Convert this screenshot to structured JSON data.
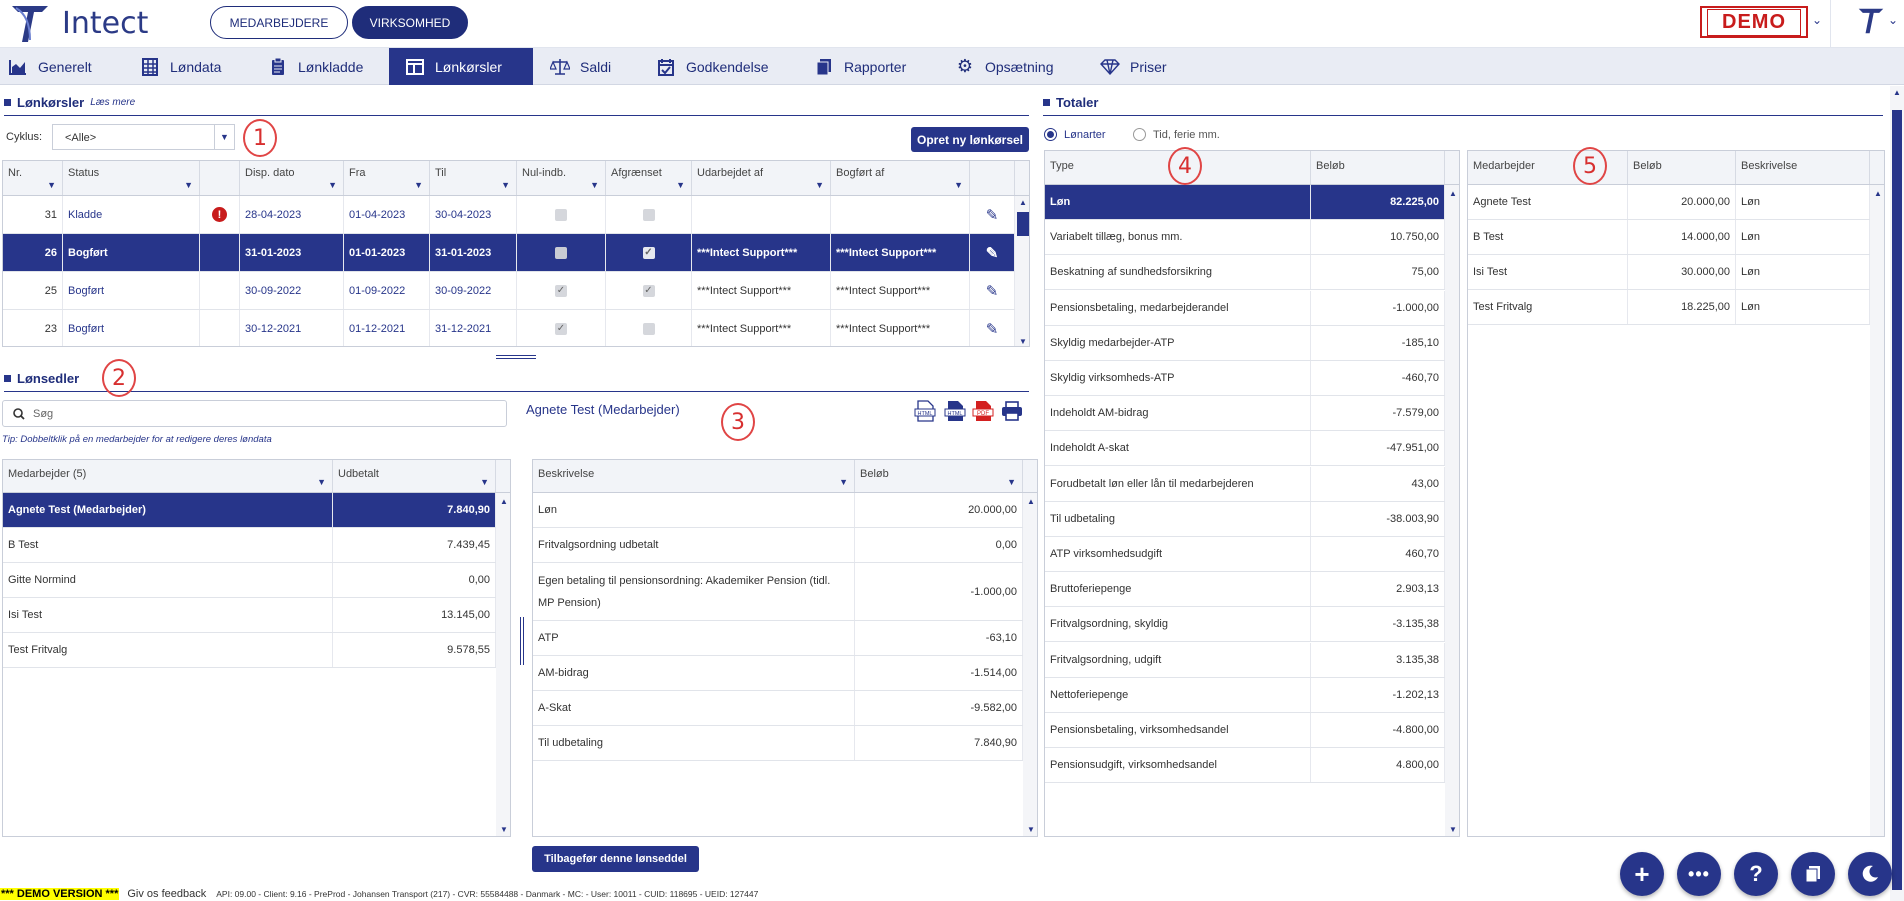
{
  "app": {
    "name": "Intect",
    "toggle": [
      "MEDARBEJDERE",
      "VIRKSOMHED"
    ],
    "demo_badge": "DEMO"
  },
  "nav": {
    "tabs": [
      {
        "label": "Generelt",
        "icon": "chart-icon"
      },
      {
        "label": "Løndata",
        "icon": "grid-icon"
      },
      {
        "label": "Lønkladde",
        "icon": "clipboard-icon"
      },
      {
        "label": "Lønkørsler",
        "icon": "columns-icon",
        "active": true
      },
      {
        "label": "Saldi",
        "icon": "scales-icon"
      },
      {
        "label": "Godkendelse",
        "icon": "calendar-check-icon"
      },
      {
        "label": "Rapporter",
        "icon": "documents-icon"
      },
      {
        "label": "Opsætning",
        "icon": "gear-icon"
      },
      {
        "label": "Priser",
        "icon": "diamond-icon"
      }
    ]
  },
  "payruns": {
    "title": "Lønkørsler",
    "read_more": "Læs mere",
    "cycle_label": "Cyklus:",
    "cycle_value": "<Alle>",
    "new_button": "Opret ny lønkørsel",
    "columns": [
      "Nr.",
      "Status",
      "",
      "Disp. dato",
      "Fra",
      "Til",
      "Nul-indb.",
      "Afgrænset",
      "Udarbejdet af",
      "Bogført af",
      ""
    ],
    "rows": [
      {
        "nr": "31",
        "status": "Kladde",
        "warn": true,
        "disp": "28-04-2023",
        "fra": "01-04-2023",
        "til": "30-04-2023",
        "nul": false,
        "afg": false,
        "udarb": "",
        "bogf": ""
      },
      {
        "nr": "26",
        "status": "Bogført",
        "warn": false,
        "disp": "31-01-2023",
        "fra": "01-01-2023",
        "til": "31-01-2023",
        "nul": false,
        "afg": true,
        "udarb": "***Intect Support***",
        "bogf": "***Intect Support***",
        "selected": true
      },
      {
        "nr": "25",
        "status": "Bogført",
        "warn": false,
        "disp": "30-09-2022",
        "fra": "01-09-2022",
        "til": "30-09-2022",
        "nul": true,
        "afg": true,
        "udarb": "***Intect Support***",
        "bogf": "***Intect Support***"
      },
      {
        "nr": "23",
        "status": "Bogført",
        "warn": false,
        "disp": "30-12-2021",
        "fra": "01-12-2021",
        "til": "31-12-2021",
        "nul": true,
        "afg": false,
        "udarb": "***Intect Support***",
        "bogf": "***Intect Support***"
      }
    ]
  },
  "payslips": {
    "title": "Lønsedler",
    "search_placeholder": "Søg",
    "tip": "Tip: Dobbeltklik på en medarbejder for at redigere deres løndata",
    "columns": [
      "Medarbejder (5)",
      "Udbetalt"
    ],
    "rows": [
      {
        "name": "Agnete Test (Medarbejder)",
        "amount": "7.840,90",
        "selected": true
      },
      {
        "name": "B Test",
        "amount": "7.439,45"
      },
      {
        "name": "Gitte Normind",
        "amount": "0,00"
      },
      {
        "name": "Isi Test",
        "amount": "13.145,00"
      },
      {
        "name": "Test Fritvalg",
        "amount": "9.578,55"
      }
    ]
  },
  "payslip_detail": {
    "employee": "Agnete Test (Medarbejder)",
    "columns": [
      "Beskrivelse",
      "Beløb"
    ],
    "rows": [
      {
        "desc": "Løn",
        "amount": "20.000,00"
      },
      {
        "desc": "Fritvalgsordning udbetalt",
        "amount": "0,00"
      },
      {
        "desc": "Egen betaling til pensionsordning: Akademiker Pension (tidl. MP Pension)",
        "amount": "-1.000,00"
      },
      {
        "desc": "ATP",
        "amount": "-63,10"
      },
      {
        "desc": "AM-bidrag",
        "amount": "-1.514,00"
      },
      {
        "desc": "A-Skat",
        "amount": "-9.582,00"
      },
      {
        "desc": "Til udbetaling",
        "amount": "7.840,90"
      }
    ],
    "revert_button": "Tilbagefør denne lønseddel",
    "icons": [
      "html-icon",
      "html-alt-icon",
      "pdf-icon",
      "print-icon"
    ]
  },
  "totals": {
    "title": "Totaler",
    "radio_options": [
      "Lønarter",
      "Tid, ferie mm."
    ],
    "columns": [
      "Type",
      "Beløb"
    ],
    "rows": [
      {
        "type": "Løn",
        "amount": "82.225,00",
        "selected": true
      },
      {
        "type": "Variabelt tillæg, bonus mm.",
        "amount": "10.750,00"
      },
      {
        "type": "Beskatning af sundhedsforsikring",
        "amount": "75,00"
      },
      {
        "type": "Pensionsbetaling, medarbejderandel",
        "amount": "-1.000,00"
      },
      {
        "type": "Skyldig medarbejder-ATP",
        "amount": "-185,10"
      },
      {
        "type": "Skyldig virksomheds-ATP",
        "amount": "-460,70"
      },
      {
        "type": "Indeholdt AM-bidrag",
        "amount": "-7.579,00"
      },
      {
        "type": "Indeholdt A-skat",
        "amount": "-47.951,00"
      },
      {
        "type": "Forudbetalt løn eller lån til medarbejderen",
        "amount": "43,00"
      },
      {
        "type": "Til udbetaling",
        "amount": "-38.003,90"
      },
      {
        "type": "ATP virksomhedsudgift",
        "amount": "460,70"
      },
      {
        "type": "Bruttoferiepenge",
        "amount": "2.903,13"
      },
      {
        "type": "Fritvalgsordning, skyldig",
        "amount": "-3.135,38"
      },
      {
        "type": "Fritvalgsordning, udgift",
        "amount": "3.135,38"
      },
      {
        "type": "Nettoferiepenge",
        "amount": "-1.202,13"
      },
      {
        "type": "Pensionsbetaling, virksomhedsandel",
        "amount": "-4.800,00"
      },
      {
        "type": "Pensionsudgift, virksomhedsandel",
        "amount": "4.800,00"
      }
    ],
    "breakdown_columns": [
      "Medarbejder",
      "Beløb",
      "Beskrivelse"
    ],
    "breakdown_rows": [
      {
        "name": "Agnete Test",
        "amount": "20.000,00",
        "desc": "Løn"
      },
      {
        "name": "B Test",
        "amount": "14.000,00",
        "desc": "Løn"
      },
      {
        "name": "Isi Test",
        "amount": "30.000,00",
        "desc": "Løn"
      },
      {
        "name": "Test Fritvalg",
        "amount": "18.225,00",
        "desc": "Løn"
      }
    ]
  },
  "annotations": [
    "1",
    "2",
    "3",
    "4",
    "5"
  ],
  "footer": {
    "demo": "*** DEMO VERSION ***",
    "feedback": "Giv os feedback",
    "info": "API: 09.00 - Client: 9.16 - PreProd - Johansen Transport (217) - CVR: 55584488 - Danmark - MC: - User: 10011 - CUID: 118695 - UEID: 127447"
  },
  "fabs": [
    "plus-icon",
    "more-icon",
    "help-icon",
    "copy-icon",
    "moon-icon"
  ],
  "colors": {
    "primary": "#27358a",
    "demo_red": "#c81c1c",
    "annotation_red": "#e04545"
  }
}
